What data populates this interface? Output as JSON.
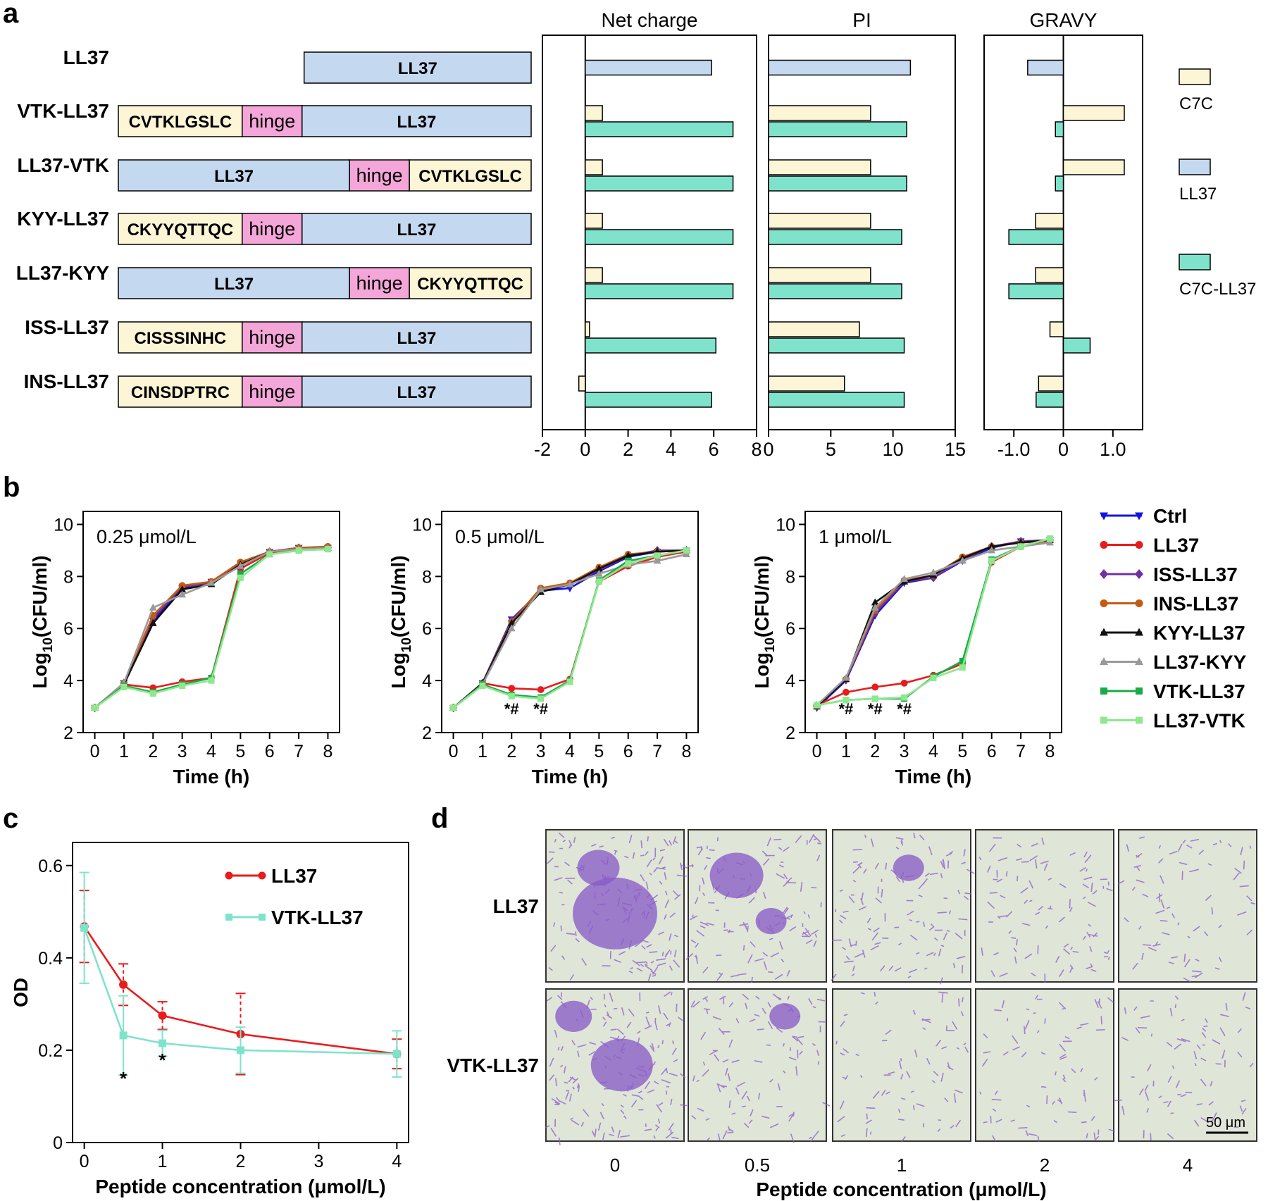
{
  "colors": {
    "c7c": "#fdf6d6",
    "ll37": "#c4d8f0",
    "hinge": "#f4a6d9",
    "c7cll37": "#7fe3cc",
    "micro_bg": "#dfe6d8",
    "cell": "#8a5cc7"
  },
  "panel_a": {
    "letter": "a",
    "constructs": [
      {
        "name": "LL37",
        "segments": [
          {
            "text": "LL37",
            "type": "ll37",
            "start": 0.45,
            "end": 1.0
          }
        ]
      },
      {
        "name": "VTK-LL37",
        "segments": [
          {
            "text": "CVTKLGSLC",
            "type": "c7c",
            "start": 0.0,
            "end": 0.3
          },
          {
            "text": "hinge",
            "type": "hinge",
            "start": 0.3,
            "end": 0.445
          },
          {
            "text": "LL37",
            "type": "ll37",
            "start": 0.445,
            "end": 1.0
          }
        ]
      },
      {
        "name": "LL37-VTK",
        "segments": [
          {
            "text": "LL37",
            "type": "ll37",
            "start": 0.0,
            "end": 0.56
          },
          {
            "text": "hinge",
            "type": "hinge",
            "start": 0.56,
            "end": 0.705
          },
          {
            "text": "CVTKLGSLC",
            "type": "c7c",
            "start": 0.705,
            "end": 1.0
          }
        ]
      },
      {
        "name": "KYY-LL37",
        "segments": [
          {
            "text": "CKYYQTTQC",
            "type": "c7c",
            "start": 0.0,
            "end": 0.3
          },
          {
            "text": "hinge",
            "type": "hinge",
            "start": 0.3,
            "end": 0.445
          },
          {
            "text": "LL37",
            "type": "ll37",
            "start": 0.445,
            "end": 1.0
          }
        ]
      },
      {
        "name": "LL37-KYY",
        "segments": [
          {
            "text": "LL37",
            "type": "ll37",
            "start": 0.0,
            "end": 0.56
          },
          {
            "text": "hinge",
            "type": "hinge",
            "start": 0.56,
            "end": 0.705
          },
          {
            "text": "CKYYQTTQC",
            "type": "c7c",
            "start": 0.705,
            "end": 1.0
          }
        ]
      },
      {
        "name": "ISS-LL37",
        "segments": [
          {
            "text": "CISSSINHC",
            "type": "c7c",
            "start": 0.0,
            "end": 0.3
          },
          {
            "text": "hinge",
            "type": "hinge",
            "start": 0.3,
            "end": 0.445
          },
          {
            "text": "LL37",
            "type": "ll37",
            "start": 0.445,
            "end": 1.0
          }
        ]
      },
      {
        "name": "INS-LL37",
        "segments": [
          {
            "text": "CINSDPTRC",
            "type": "c7c",
            "start": 0.0,
            "end": 0.3
          },
          {
            "text": "hinge",
            "type": "hinge",
            "start": 0.3,
            "end": 0.445
          },
          {
            "text": "LL37",
            "type": "ll37",
            "start": 0.445,
            "end": 1.0
          }
        ]
      }
    ],
    "legend": [
      {
        "label": "C7C",
        "type": "c7c"
      },
      {
        "label": "LL37",
        "type": "ll37"
      },
      {
        "label": "C7C-LL37",
        "type": "c7cll37"
      }
    ]
  },
  "panel_b": {
    "letter": "b",
    "legend": [
      {
        "label": "Ctrl",
        "color": "#1414e0",
        "marker": "tri-down"
      },
      {
        "label": "LL37",
        "color": "#e81c1c",
        "marker": "circle"
      },
      {
        "label": "ISS-LL37",
        "color": "#7030a0",
        "marker": "diamond"
      },
      {
        "label": "INS-LL37",
        "color": "#c55a11",
        "marker": "circle"
      },
      {
        "label": "KYY-LL37",
        "color": "#111111",
        "marker": "tri-up"
      },
      {
        "label": "LL37-KYY",
        "color": "#9a9a9a",
        "marker": "tri-up"
      },
      {
        "label": "VTK-LL37",
        "color": "#1aaa4a",
        "marker": "square"
      },
      {
        "label": "LL37-VTK",
        "color": "#8ee88e",
        "marker": "square"
      }
    ]
  },
  "panel_c": {
    "letter": "c"
  },
  "panel_d": {
    "letter": "d",
    "row_labels": [
      "LL37",
      "VTK-LL37"
    ],
    "col_labels": [
      "0",
      "0.5",
      "1",
      "2",
      "4"
    ],
    "xlabel": "Peptide  concentration  (μmol/L)",
    "scale_bar": "50 μm"
  },
  "chart_data": [
    {
      "id": "net_charge",
      "type": "bar",
      "title": "Net charge",
      "categories": [
        "LL37",
        "VTK-LL37",
        "LL37-VTK",
        "KYY-LL37",
        "LL37-KYY",
        "ISS-LL37",
        "INS-LL37"
      ],
      "series": [
        {
          "name": "C7C",
          "values": [
            null,
            0.8,
            0.8,
            0.8,
            0.8,
            0.2,
            -0.3
          ]
        },
        {
          "name": "LL37",
          "values": [
            5.9,
            null,
            null,
            null,
            null,
            null,
            null
          ]
        },
        {
          "name": "C7C-LL37",
          "values": [
            null,
            6.9,
            6.9,
            6.9,
            6.9,
            6.1,
            5.9
          ]
        }
      ],
      "xlim": [
        -2,
        8
      ],
      "ticks": [
        -2,
        0,
        2,
        4,
        6,
        8
      ],
      "tick_labels": [
        "-2",
        "0",
        "2",
        "4",
        "6",
        "8"
      ]
    },
    {
      "id": "pi",
      "type": "bar",
      "title": "PI",
      "categories": [
        "LL37",
        "VTK-LL37",
        "LL37-VTK",
        "KYY-LL37",
        "LL37-KYY",
        "ISS-LL37",
        "INS-LL37"
      ],
      "series": [
        {
          "name": "C7C",
          "values": [
            null,
            8.2,
            8.2,
            8.2,
            8.2,
            7.3,
            6.1
          ]
        },
        {
          "name": "LL37",
          "values": [
            11.4,
            null,
            null,
            null,
            null,
            null,
            null
          ]
        },
        {
          "name": "C7C-LL37",
          "values": [
            null,
            11.1,
            11.1,
            10.7,
            10.7,
            10.9,
            10.9
          ]
        }
      ],
      "xlim": [
        0,
        15
      ],
      "ticks": [
        0,
        5,
        10,
        15
      ],
      "tick_labels": [
        "0",
        "5",
        "10",
        "15"
      ]
    },
    {
      "id": "gravy",
      "type": "bar",
      "title": "GRAVY",
      "categories": [
        "LL37",
        "VTK-LL37",
        "LL37-VTK",
        "KYY-LL37",
        "LL37-KYY",
        "ISS-LL37",
        "INS-LL37"
      ],
      "series": [
        {
          "name": "C7C",
          "values": [
            null,
            1.23,
            1.23,
            -0.56,
            -0.56,
            -0.27,
            -0.5
          ]
        },
        {
          "name": "LL37",
          "values": [
            -0.72,
            null,
            null,
            null,
            null,
            null,
            null
          ]
        },
        {
          "name": "C7C-LL37",
          "values": [
            null,
            -0.16,
            -0.16,
            -1.1,
            -1.1,
            0.54,
            -0.55
          ]
        }
      ],
      "xlim": [
        -1.6,
        1.6
      ],
      "ticks": [
        -1.0,
        0,
        1.0
      ],
      "tick_labels": [
        "-1.0",
        "0",
        "1.0"
      ]
    },
    {
      "id": "growth_025",
      "type": "line",
      "title": "0.25 μmol/L",
      "xlabel": "Time (h)",
      "ylabel": "Log10(CFU/ml)",
      "ylabel_main": "Log",
      "ylabel_sub": "10",
      "ylabel_rest": "(CFU/ml)",
      "x": [
        0,
        1,
        2,
        3,
        4,
        5,
        6,
        7,
        8
      ],
      "xlim": [
        -0.4,
        8.4
      ],
      "ylim": [
        2,
        10.5
      ],
      "xticks": [
        "0",
        "1",
        "2",
        "3",
        "4",
        "5",
        "6",
        "7",
        "8"
      ],
      "yticks": [
        "2",
        "4",
        "6",
        "8",
        "10"
      ],
      "annotations": [],
      "series": [
        {
          "name": "Ctrl",
          "values": [
            2.95,
            3.9,
            6.3,
            7.55,
            7.8,
            8.5,
            8.95,
            9.1,
            9.1
          ]
        },
        {
          "name": "LL37",
          "values": [
            2.95,
            3.85,
            3.72,
            3.95,
            4.1,
            8.3,
            8.9,
            9.05,
            9.1
          ]
        },
        {
          "name": "ISS-LL37",
          "values": [
            2.95,
            3.9,
            6.4,
            7.6,
            7.75,
            8.45,
            8.95,
            9.1,
            9.1
          ]
        },
        {
          "name": "INS-LL37",
          "values": [
            2.95,
            3.9,
            6.5,
            7.65,
            7.8,
            8.55,
            8.95,
            9.1,
            9.15
          ]
        },
        {
          "name": "KYY-LL37",
          "values": [
            2.95,
            3.85,
            6.2,
            7.5,
            7.7,
            8.45,
            8.95,
            9.05,
            9.1
          ]
        },
        {
          "name": "LL37-KYY",
          "values": [
            2.95,
            3.9,
            6.8,
            7.3,
            7.75,
            8.4,
            8.95,
            9.05,
            9.1
          ]
        },
        {
          "name": "VTK-LL37",
          "values": [
            2.95,
            3.8,
            3.55,
            3.85,
            4.1,
            8.1,
            8.85,
            9.0,
            9.05
          ]
        },
        {
          "name": "LL37-VTK",
          "values": [
            2.95,
            3.75,
            3.5,
            3.8,
            4.0,
            7.95,
            8.85,
            9.0,
            9.05
          ]
        }
      ]
    },
    {
      "id": "growth_05",
      "type": "line",
      "title": "0.5 μmol/L",
      "xlabel": "Time (h)",
      "ylabel": "Log10(CFU/ml)",
      "ylabel_main": "Log",
      "ylabel_sub": "10",
      "ylabel_rest": "(CFU/ml)",
      "x": [
        0,
        1,
        2,
        3,
        4,
        5,
        6,
        7,
        8
      ],
      "xlim": [
        -0.4,
        8.4
      ],
      "ylim": [
        2,
        10.5
      ],
      "xticks": [
        "0",
        "1",
        "2",
        "3",
        "4",
        "5",
        "6",
        "7",
        "8"
      ],
      "yticks": [
        "2",
        "4",
        "6",
        "8",
        "10"
      ],
      "annotations": [
        {
          "x": 2,
          "y": 2.7,
          "text": "*#"
        },
        {
          "x": 3,
          "y": 2.7,
          "text": "*#"
        }
      ],
      "series": [
        {
          "name": "Ctrl",
          "values": [
            2.95,
            3.9,
            6.35,
            7.45,
            7.55,
            8.2,
            8.75,
            8.95,
            9.0
          ]
        },
        {
          "name": "LL37",
          "values": [
            2.95,
            3.9,
            3.7,
            3.65,
            4.05,
            7.8,
            8.4,
            8.75,
            8.95
          ]
        },
        {
          "name": "ISS-LL37",
          "values": [
            2.95,
            3.9,
            6.3,
            7.45,
            7.7,
            8.25,
            8.8,
            9.0,
            9.0
          ]
        },
        {
          "name": "INS-LL37",
          "values": [
            2.95,
            3.9,
            6.25,
            7.55,
            7.75,
            8.35,
            8.85,
            8.95,
            9.0
          ]
        },
        {
          "name": "KYY-LL37",
          "values": [
            2.95,
            3.9,
            6.2,
            7.4,
            7.7,
            8.3,
            8.8,
            8.95,
            9.0
          ]
        },
        {
          "name": "LL37-KYY",
          "values": [
            2.95,
            3.85,
            6.0,
            7.5,
            7.7,
            8.1,
            8.45,
            8.6,
            8.85
          ]
        },
        {
          "name": "VTK-LL37",
          "values": [
            2.95,
            3.85,
            3.45,
            3.35,
            4.0,
            7.85,
            8.6,
            8.8,
            9.0
          ]
        },
        {
          "name": "LL37-VTK",
          "values": [
            2.95,
            3.8,
            3.4,
            3.3,
            3.95,
            7.8,
            8.5,
            8.8,
            9.0
          ]
        }
      ]
    },
    {
      "id": "growth_1",
      "type": "line",
      "title": "1 μmol/L",
      "xlabel": "Time (h)",
      "ylabel": "Log10(CFU/ml)",
      "ylabel_main": "Log",
      "ylabel_sub": "10",
      "ylabel_rest": "(CFU/ml)",
      "x": [
        0,
        1,
        2,
        3,
        4,
        5,
        6,
        7,
        8
      ],
      "xlim": [
        -0.4,
        8.4
      ],
      "ylim": [
        2,
        10.5
      ],
      "xticks": [
        "0",
        "1",
        "2",
        "3",
        "4",
        "5",
        "6",
        "7",
        "8"
      ],
      "yticks": [
        "2",
        "4",
        "6",
        "8",
        "10"
      ],
      "annotations": [
        {
          "x": 1,
          "y": 2.7,
          "text": "*#"
        },
        {
          "x": 2,
          "y": 2.7,
          "text": "*#"
        },
        {
          "x": 3,
          "y": 2.7,
          "text": "*#"
        }
      ],
      "series": [
        {
          "name": "Ctrl",
          "values": [
            2.95,
            4.0,
            6.5,
            7.75,
            7.95,
            8.6,
            9.1,
            9.35,
            9.4
          ]
        },
        {
          "name": "LL37",
          "values": [
            3.05,
            3.55,
            3.75,
            3.9,
            4.2,
            4.65,
            8.55,
            9.15,
            9.4
          ]
        },
        {
          "name": "ISS-LL37",
          "values": [
            3.0,
            4.05,
            6.6,
            7.8,
            7.95,
            8.65,
            9.15,
            9.35,
            9.4
          ]
        },
        {
          "name": "INS-LL37",
          "values": [
            3.0,
            4.05,
            6.7,
            7.85,
            8.05,
            8.75,
            9.15,
            9.3,
            9.35
          ]
        },
        {
          "name": "KYY-LL37",
          "values": [
            3.0,
            4.05,
            7.0,
            7.8,
            8.05,
            8.7,
            9.15,
            9.3,
            9.4
          ]
        },
        {
          "name": "LL37-KYY",
          "values": [
            3.05,
            4.1,
            6.8,
            7.9,
            8.15,
            8.6,
            9.0,
            9.15,
            9.3
          ]
        },
        {
          "name": "VTK-LL37",
          "values": [
            3.05,
            3.25,
            3.3,
            3.3,
            4.15,
            4.75,
            8.65,
            9.15,
            9.45
          ]
        },
        {
          "name": "LL37-VTK",
          "values": [
            3.05,
            3.25,
            3.3,
            3.35,
            4.1,
            4.5,
            8.6,
            9.15,
            9.45
          ]
        }
      ]
    },
    {
      "id": "biofilm_od",
      "type": "line",
      "xlabel": "Peptide  concentration  (μmol/L)",
      "ylabel": "OD",
      "x": [
        0,
        0.5,
        1,
        2,
        4
      ],
      "xlim": [
        -0.15,
        4.15
      ],
      "ylim": [
        0,
        0.65
      ],
      "xticks": [
        "0",
        "1",
        "2",
        "3",
        "4"
      ],
      "yticks": [
        "0",
        "0.2",
        "0.4",
        "0.6"
      ],
      "annotations": [
        {
          "x": 0.5,
          "y": 0.125,
          "text": "*"
        },
        {
          "x": 1,
          "y": 0.165,
          "text": "*"
        }
      ],
      "series": [
        {
          "name": "LL37",
          "color": "#e81c1c",
          "values": [
            0.468,
            0.342,
            0.275,
            0.235,
            0.192
          ],
          "errors": [
            0.078,
            0.045,
            0.03,
            0.088,
            0.032
          ]
        },
        {
          "name": "VTK-LL37",
          "color": "#7fe3cc",
          "values": [
            0.465,
            0.232,
            0.215,
            0.2,
            0.192
          ],
          "errors": [
            0.12,
            0.086,
            0.028,
            0.05,
            0.05
          ]
        }
      ]
    }
  ]
}
